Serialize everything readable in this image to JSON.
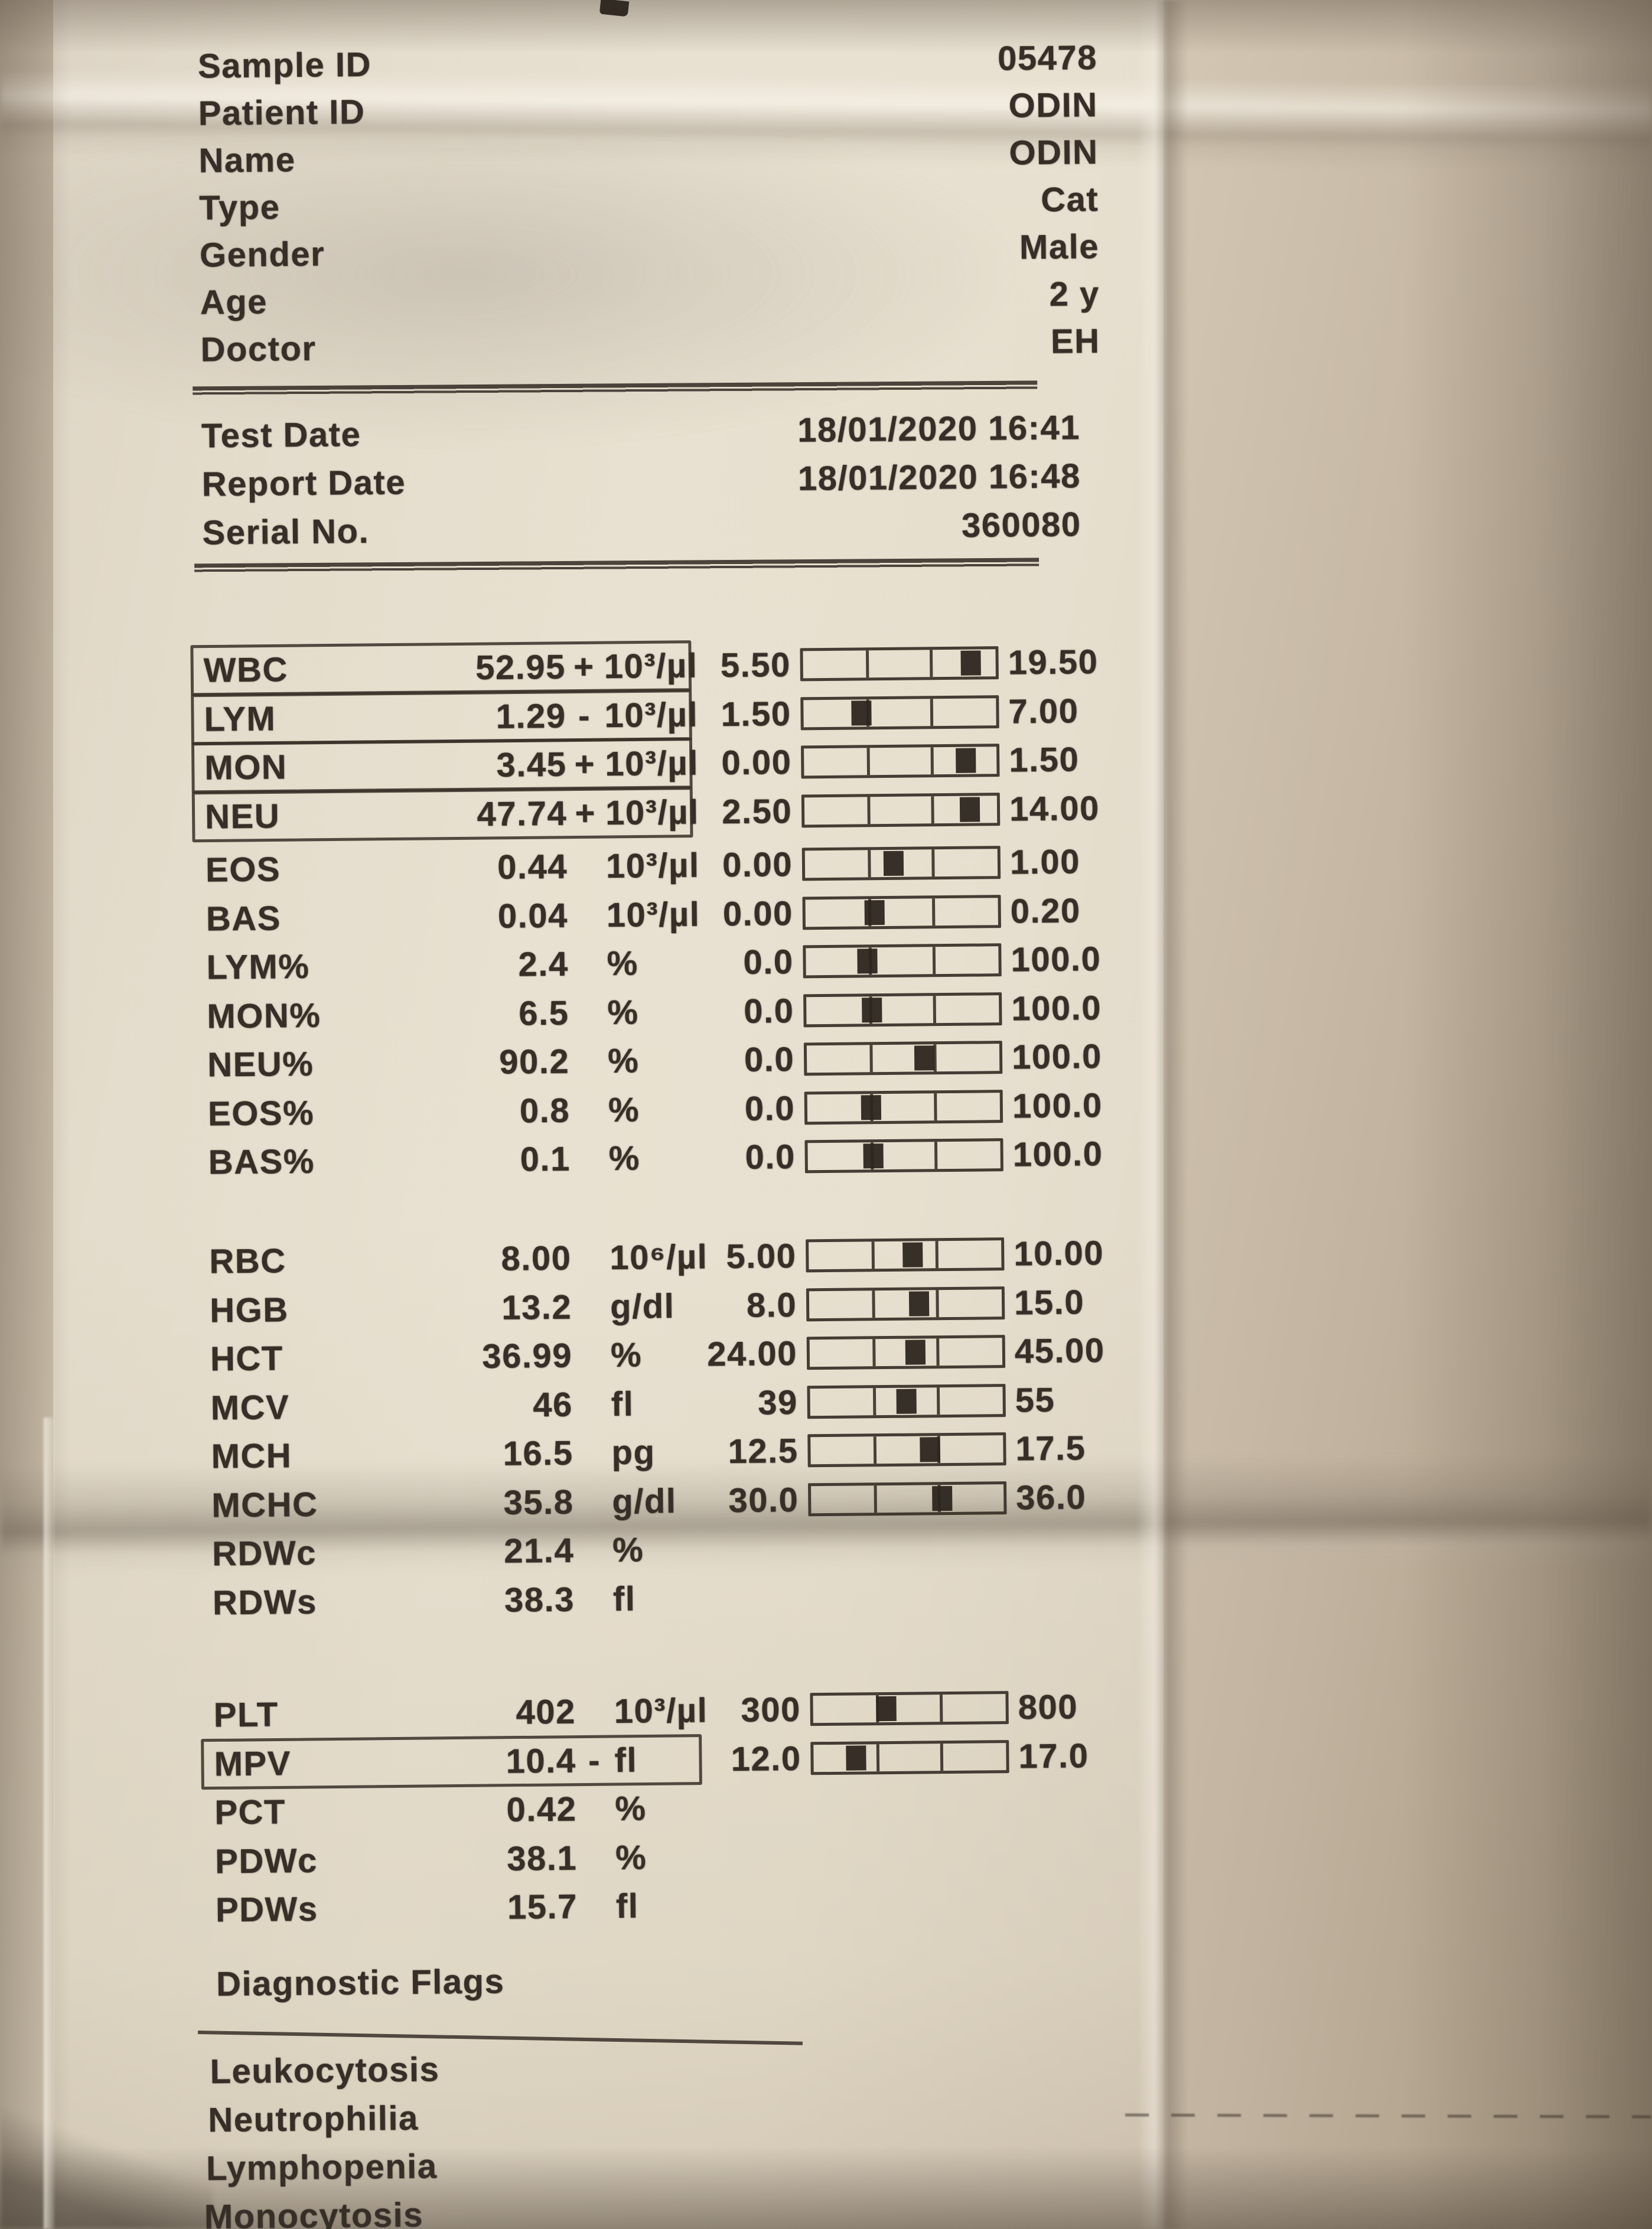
{
  "ink_color": "#372f27",
  "paper_color": "#e6dfcf",
  "header": {
    "rows": [
      {
        "label": "Sample ID",
        "value": "05478"
      },
      {
        "label": "Patient ID",
        "value": "ODIN"
      },
      {
        "label": "Name",
        "value": "ODIN"
      },
      {
        "label": "Type",
        "value": "Cat"
      },
      {
        "label": "Gender",
        "value": "Male"
      },
      {
        "label": "Age",
        "value": "2 y"
      },
      {
        "label": "Doctor",
        "value": "EH"
      }
    ]
  },
  "meta": {
    "rows": [
      {
        "label": "Test Date",
        "value": "18/01/2020 16:41"
      },
      {
        "label": "Report Date",
        "value": "18/01/2020 16:48"
      },
      {
        "label": "Serial No.",
        "value": "360080"
      }
    ]
  },
  "results": {
    "groups": [
      {
        "id": "wbc",
        "rows": [
          {
            "param": "WBC",
            "value": "52.95",
            "flag": "+",
            "unit": "10³/µl",
            "min": "5.50",
            "max": "19.50",
            "marker": 0.87,
            "boxed": true
          },
          {
            "param": "LYM",
            "value": "1.29",
            "flag": "-",
            "unit": "10³/µl",
            "min": "1.50",
            "max": "7.00",
            "marker": 0.3,
            "boxed": true
          },
          {
            "param": "MON",
            "value": "3.45",
            "flag": "+",
            "unit": "10³/µl",
            "min": "0.00",
            "max": "1.50",
            "marker": 0.84,
            "boxed": true
          },
          {
            "param": "NEU",
            "value": "47.74",
            "flag": "+",
            "unit": "10³/µl",
            "min": "2.50",
            "max": "14.00",
            "marker": 0.86,
            "boxed": true
          }
        ]
      },
      {
        "id": "diff",
        "rows": [
          {
            "param": "EOS",
            "value": "0.44",
            "flag": "",
            "unit": "10³/µl",
            "min": "0.00",
            "max": "1.00",
            "marker": 0.46,
            "boxed": false
          },
          {
            "param": "BAS",
            "value": "0.04",
            "flag": "",
            "unit": "10³/µl",
            "min": "0.00",
            "max": "0.20",
            "marker": 0.36,
            "boxed": false
          },
          {
            "param": "LYM%",
            "value": "2.4",
            "flag": "",
            "unit": "%",
            "min": "0.0",
            "max": "100.0",
            "marker": 0.32,
            "boxed": false
          },
          {
            "param": "MON%",
            "value": "6.5",
            "flag": "",
            "unit": "%",
            "min": "0.0",
            "max": "100.0",
            "marker": 0.34,
            "boxed": false
          },
          {
            "param": "NEU%",
            "value": "90.2",
            "flag": "",
            "unit": "%",
            "min": "0.0",
            "max": "100.0",
            "marker": 0.61,
            "boxed": false
          },
          {
            "param": "EOS%",
            "value": "0.8",
            "flag": "",
            "unit": "%",
            "min": "0.0",
            "max": "100.0",
            "marker": 0.33,
            "boxed": false
          },
          {
            "param": "BAS%",
            "value": "0.1",
            "flag": "",
            "unit": "%",
            "min": "0.0",
            "max": "100.0",
            "marker": 0.34,
            "boxed": false
          }
        ]
      },
      {
        "id": "rbc",
        "rows": [
          {
            "param": "RBC",
            "value": "8.00",
            "flag": "",
            "unit": "10⁶/µl",
            "min": "5.00",
            "max": "10.00",
            "marker": 0.54,
            "boxed": false
          },
          {
            "param": "HGB",
            "value": "13.2",
            "flag": "",
            "unit": "g/dl",
            "min": "8.0",
            "max": "15.0",
            "marker": 0.57,
            "boxed": false
          },
          {
            "param": "HCT",
            "value": "36.99",
            "flag": "",
            "unit": "%",
            "min": "24.00",
            "max": "45.00",
            "marker": 0.55,
            "boxed": false
          },
          {
            "param": "MCV",
            "value": "46",
            "flag": "",
            "unit": "fl",
            "min": "39",
            "max": "55",
            "marker": 0.5,
            "boxed": false
          },
          {
            "param": "MCH",
            "value": "16.5",
            "flag": "",
            "unit": "pg",
            "min": "12.5",
            "max": "17.5",
            "marker": 0.62,
            "boxed": false
          },
          {
            "param": "MCHC",
            "value": "35.8",
            "flag": "",
            "unit": "g/dl",
            "min": "30.0",
            "max": "36.0",
            "marker": 0.68,
            "boxed": false
          },
          {
            "param": "RDWc",
            "value": "21.4",
            "flag": "",
            "unit": "%",
            "min": null,
            "max": null,
            "marker": null,
            "boxed": false
          },
          {
            "param": "RDWs",
            "value": "38.3",
            "flag": "",
            "unit": "fl",
            "min": null,
            "max": null,
            "marker": null,
            "boxed": false
          }
        ]
      },
      {
        "id": "plt",
        "rows": [
          {
            "param": "PLT",
            "value": "402",
            "flag": "",
            "unit": "10³/µl",
            "min": "300",
            "max": "800",
            "marker": 0.38,
            "boxed": false
          },
          {
            "param": "MPV",
            "value": "10.4",
            "flag": "-",
            "unit": "fl",
            "min": "12.0",
            "max": "17.0",
            "marker": 0.22,
            "boxed": true
          },
          {
            "param": "PCT",
            "value": "0.42",
            "flag": "",
            "unit": "%",
            "min": null,
            "max": null,
            "marker": null,
            "boxed": false
          },
          {
            "param": "PDWc",
            "value": "38.1",
            "flag": "",
            "unit": "%",
            "min": null,
            "max": null,
            "marker": null,
            "boxed": false
          },
          {
            "param": "PDWs",
            "value": "15.7",
            "flag": "",
            "unit": "fl",
            "min": null,
            "max": null,
            "marker": null,
            "boxed": false
          }
        ]
      }
    ]
  },
  "diagnostic_flags": {
    "title": "Diagnostic Flags",
    "items": [
      "Leukocytosis",
      "Neutrophilia",
      "Lymphopenia",
      "Monocytosis"
    ]
  }
}
